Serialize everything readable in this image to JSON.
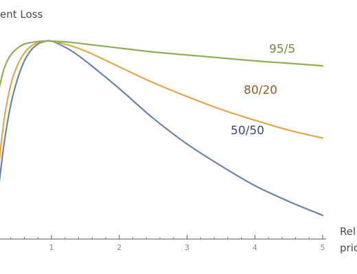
{
  "chart_data": {
    "type": "line",
    "ylabel": "ent Loss",
    "xlabel_line1": "Rel",
    "xlabel_line2": "pric",
    "xlim": [
      0.2,
      5.05
    ],
    "ylim": [
      0,
      1.0
    ],
    "x_ticks": [
      1,
      2,
      3,
      4,
      5
    ],
    "x_tick_labels": [
      "1",
      "2",
      "3",
      "4",
      "5"
    ],
    "grid": false,
    "legend": "inline labels at right end of each curve",
    "colors": {
      "95/5": "#8fad55",
      "80/20": "#e0a84a",
      "50/50": "#6a82ad",
      "95/5_label": "#6f8f3a",
      "80/20_label": "#9a5a2a",
      "50/50_label": "#3a4a7a"
    },
    "series": [
      {
        "name": "95/5",
        "x": [
          0.2,
          0.3,
          0.4,
          0.5,
          0.6,
          0.7,
          0.8,
          0.9,
          1.0,
          1.25,
          1.5,
          2.0,
          2.5,
          3.0,
          3.5,
          4.0,
          4.5,
          5.0
        ],
        "y": [
          0.72,
          0.86,
          0.93,
          0.965,
          0.985,
          0.993,
          0.998,
          1.0,
          1.0,
          0.995,
          0.985,
          0.965,
          0.945,
          0.93,
          0.915,
          0.9,
          0.888,
          0.875
        ]
      },
      {
        "name": "80/20",
        "x": [
          0.2,
          0.3,
          0.4,
          0.5,
          0.6,
          0.7,
          0.8,
          0.9,
          1.0,
          1.25,
          1.5,
          2.0,
          2.5,
          3.0,
          3.5,
          4.0,
          4.5,
          5.0
        ],
        "y": [
          0.3,
          0.6,
          0.78,
          0.88,
          0.94,
          0.975,
          0.993,
          1.0,
          1.0,
          0.98,
          0.95,
          0.87,
          0.79,
          0.72,
          0.655,
          0.6,
          0.55,
          0.51
        ]
      },
      {
        "name": "50/50",
        "x": [
          0.2,
          0.3,
          0.4,
          0.5,
          0.6,
          0.7,
          0.8,
          0.9,
          1.0,
          1.25,
          1.5,
          2.0,
          2.5,
          3.0,
          3.5,
          4.0,
          4.5,
          5.0
        ],
        "y": [
          0.2,
          0.48,
          0.68,
          0.81,
          0.9,
          0.955,
          0.985,
          0.998,
          1.0,
          0.96,
          0.9,
          0.76,
          0.61,
          0.48,
          0.37,
          0.27,
          0.19,
          0.12
        ]
      }
    ]
  }
}
